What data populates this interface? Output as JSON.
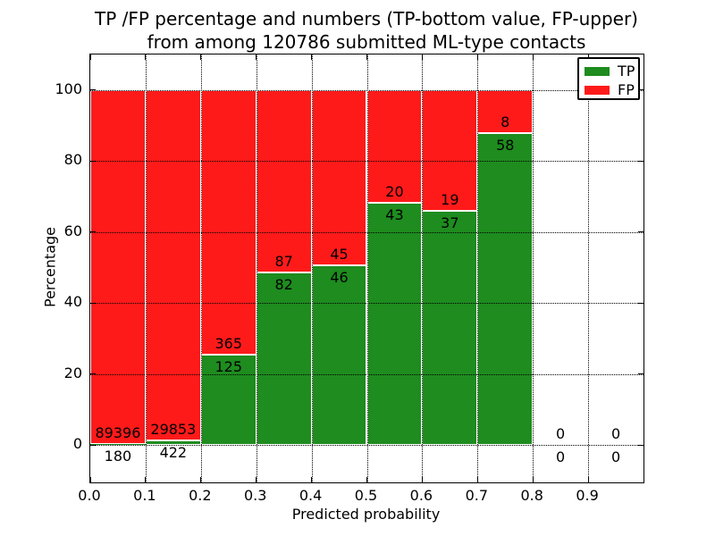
{
  "figure": {
    "title_line1": "TP /FP percentage and numbers (TP-bottom value, FP-upper)",
    "title_line2": "from among 120786 submitted ML-type contacts"
  },
  "axes": {
    "xlabel": "Predicted probability",
    "ylabel": "Percentage"
  },
  "legend": {
    "position": "upper right",
    "items": [
      {
        "label": "TP",
        "color": "#1e8c1e"
      },
      {
        "label": "FP",
        "color": "#ff1a1a"
      }
    ]
  },
  "chart_data": {
    "type": "bar",
    "stacked": true,
    "title": "TP /FP percentage and numbers (TP-bottom value, FP-upper) from among 120786 submitted ML-type contacts",
    "xlabel": "Predicted probability",
    "ylabel": "Percentage",
    "total_submitted_contacts": 120786,
    "bin_width": 0.1,
    "bin_starts": [
      0.0,
      0.1,
      0.2,
      0.3,
      0.4,
      0.5,
      0.6,
      0.7,
      0.8,
      0.9
    ],
    "series": [
      {
        "name": "TP",
        "color": "#1e8c1e",
        "counts": [
          180,
          422,
          125,
          82,
          46,
          43,
          37,
          58,
          0,
          0
        ]
      },
      {
        "name": "FP",
        "color": "#ff1a1a",
        "counts": [
          89396,
          29853,
          365,
          87,
          45,
          20,
          19,
          8,
          0,
          0
        ]
      }
    ],
    "bars_normalized_to_percent": 100,
    "x_tick_labels": [
      "0.0",
      "0.1",
      "0.2",
      "0.3",
      "0.4",
      "0.5",
      "0.6",
      "0.7",
      "0.8",
      "0.9"
    ],
    "y_tick_labels": [
      0,
      20,
      40,
      60,
      80,
      100
    ],
    "xlim": [
      0,
      1.0
    ],
    "ylim": [
      -10.5,
      110
    ],
    "grid": true,
    "grid_style": "dotted",
    "bar_edge_color": "#ffffff",
    "legend_position": "upper right"
  }
}
